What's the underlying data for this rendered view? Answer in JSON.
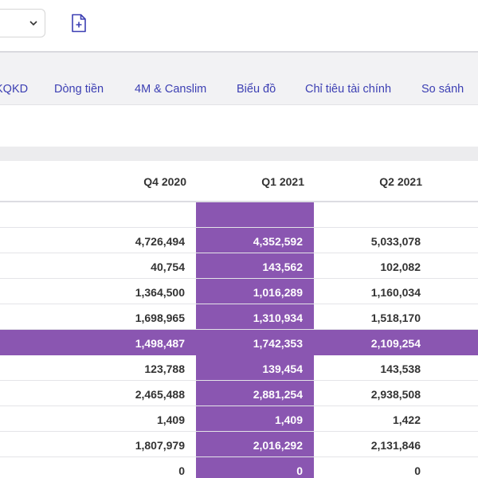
{
  "tabs": [
    "KQKD",
    "Dòng tiền",
    "4M & Canslim",
    "Biểu đồ",
    "Chỉ tiêu tài chính",
    "So sánh"
  ],
  "columns": [
    "Q4 2020",
    "Q1 2021",
    "Q2 2021"
  ],
  "rows": [
    [
      "",
      "",
      ""
    ],
    [
      "4,726,494",
      "4,352,592",
      "5,033,078"
    ],
    [
      "40,754",
      "143,562",
      "102,082"
    ],
    [
      "1,364,500",
      "1,016,289",
      "1,160,034"
    ],
    [
      "1,698,965",
      "1,310,934",
      "1,518,170"
    ],
    [
      "1,498,487",
      "1,742,353",
      "2,109,254"
    ],
    [
      "123,788",
      "139,454",
      "143,538"
    ],
    [
      "2,465,488",
      "2,881,254",
      "2,938,508"
    ],
    [
      "1,409",
      "1,409",
      "1,422"
    ],
    [
      "1,807,979",
      "2,016,292",
      "2,131,846"
    ],
    [
      "0",
      "0",
      "0"
    ]
  ],
  "colors": {
    "highlight": "#8a56b1",
    "tab_text": "#3c3fb3"
  },
  "icons": {
    "select": "chevron-down-icon",
    "add": "add-file-icon"
  }
}
